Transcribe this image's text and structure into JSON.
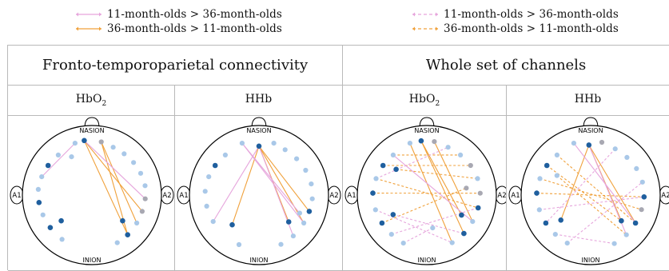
{
  "colors": {
    "pink": "#e6a5dc",
    "orange": "#f0a13b",
    "electrode_light": "#a9c8e8",
    "electrode_dark": "#1f5f9e",
    "electrode_gray": "#a8a8b2"
  },
  "legend": {
    "left": [
      {
        "label": "11-month-olds > 36-month-olds",
        "color": "pink",
        "style": "solid"
      },
      {
        "label": "36-month-olds > 11-month-olds",
        "color": "orange",
        "style": "solid"
      }
    ],
    "right": [
      {
        "label": "11-month-olds > 36-month-olds",
        "color": "pink",
        "style": "dashed"
      },
      {
        "label": "36-month-olds > 11-month-olds",
        "color": "orange",
        "style": "dashed"
      }
    ]
  },
  "groups": [
    {
      "title": "Fronto-temporoparietal connectivity"
    },
    {
      "title": "Whole set of channels"
    }
  ],
  "landmarks": {
    "nasion": "NASION",
    "inion": "INION",
    "left_ear": "A1",
    "right_ear": "A2"
  },
  "panels": [
    {
      "signal": "HbO",
      "signal_sub": "2",
      "electrodes": [
        {
          "a": 108,
          "r": 0.98,
          "t": "l"
        },
        {
          "a": 98,
          "r": 0.99,
          "t": "d"
        },
        {
          "a": 80,
          "r": 0.97,
          "t": "g"
        },
        {
          "a": 66,
          "r": 0.94,
          "t": "l"
        },
        {
          "a": 52,
          "r": 0.94,
          "t": "l"
        },
        {
          "a": 38,
          "r": 0.95,
          "t": "l"
        },
        {
          "a": 24,
          "r": 0.96,
          "t": "l"
        },
        {
          "a": 10,
          "r": 0.97,
          "t": "l"
        },
        {
          "a": -4,
          "r": 0.96,
          "t": "g"
        },
        {
          "a": -18,
          "r": 0.95,
          "t": "g"
        },
        {
          "a": -32,
          "r": 0.95,
          "t": "l"
        },
        {
          "a": -48,
          "r": 0.96,
          "t": "d"
        },
        {
          "a": -62,
          "r": 0.97,
          "t": "l"
        },
        {
          "a": 130,
          "r": 0.94,
          "t": "l"
        },
        {
          "a": 146,
          "r": 0.95,
          "t": "d"
        },
        {
          "a": 160,
          "r": 0.96,
          "t": "l"
        },
        {
          "a": 174,
          "r": 0.97,
          "t": "l"
        },
        {
          "a": -172,
          "r": 0.96,
          "t": "d"
        },
        {
          "a": -158,
          "r": 0.95,
          "t": "l"
        },
        {
          "a": -142,
          "r": 0.95,
          "t": "d"
        },
        {
          "a": -124,
          "r": 0.96,
          "t": "l"
        },
        {
          "a": 118,
          "r": 0.78,
          "t": "l"
        },
        {
          "a": -140,
          "r": 0.72,
          "t": "d"
        },
        {
          "a": -40,
          "r": 0.72,
          "t": "d"
        }
      ],
      "connections": [
        {
          "from": 1,
          "to": 11,
          "color": "orange",
          "style": "solid"
        },
        {
          "from": 2,
          "to": 10,
          "color": "orange",
          "style": "solid"
        },
        {
          "from": 1,
          "to": 9,
          "color": "orange",
          "style": "solid"
        },
        {
          "from": 2,
          "to": 11,
          "color": "orange",
          "style": "solid"
        },
        {
          "from": 0,
          "to": 15,
          "color": "pink",
          "style": "solid"
        },
        {
          "from": 1,
          "to": 8,
          "color": "pink",
          "style": "solid"
        }
      ]
    },
    {
      "signal": "HHb",
      "signal_sub": "",
      "electrodes": [
        {
          "a": 108,
          "r": 0.98,
          "t": "l"
        },
        {
          "a": 90,
          "r": 0.88,
          "t": "d"
        },
        {
          "a": 74,
          "r": 0.97,
          "t": "l"
        },
        {
          "a": 60,
          "r": 0.94,
          "t": "l"
        },
        {
          "a": 44,
          "r": 0.94,
          "t": "l"
        },
        {
          "a": 28,
          "r": 0.95,
          "t": "l"
        },
        {
          "a": 12,
          "r": 0.96,
          "t": "l"
        },
        {
          "a": -4,
          "r": 0.96,
          "t": "l"
        },
        {
          "a": -18,
          "r": 0.95,
          "t": "d"
        },
        {
          "a": -32,
          "r": 0.95,
          "t": "l"
        },
        {
          "a": -50,
          "r": 0.96,
          "t": "l"
        },
        {
          "a": -66,
          "r": 0.97,
          "t": "l"
        },
        {
          "a": 130,
          "r": 0.94,
          "t": "l"
        },
        {
          "a": 146,
          "r": 0.95,
          "t": "d"
        },
        {
          "a": 160,
          "r": 0.96,
          "t": "l"
        },
        {
          "a": 176,
          "r": 0.97,
          "t": "l"
        },
        {
          "a": -168,
          "r": 0.96,
          "t": "l"
        },
        {
          "a": -150,
          "r": 0.95,
          "t": "l"
        },
        {
          "a": -132,
          "r": 0.72,
          "t": "d"
        },
        {
          "a": -112,
          "r": 0.96,
          "t": "l"
        },
        {
          "a": -42,
          "r": 0.72,
          "t": "d"
        },
        {
          "a": -24,
          "r": 0.8,
          "t": "l"
        }
      ],
      "connections": [
        {
          "from": 1,
          "to": 18,
          "color": "orange",
          "style": "solid"
        },
        {
          "from": 1,
          "to": 8,
          "color": "orange",
          "style": "solid"
        },
        {
          "from": 1,
          "to": 20,
          "color": "orange",
          "style": "solid"
        },
        {
          "from": 1,
          "to": 9,
          "color": "orange",
          "style": "solid"
        },
        {
          "from": 0,
          "to": 21,
          "color": "pink",
          "style": "solid"
        },
        {
          "from": 1,
          "to": 10,
          "color": "pink",
          "style": "solid"
        },
        {
          "from": 1,
          "to": 17,
          "color": "pink",
          "style": "solid"
        },
        {
          "from": 0,
          "to": 9,
          "color": "pink",
          "style": "solid"
        }
      ]
    },
    {
      "signal": "HbO",
      "signal_sub": "2",
      "electrodes": [
        {
          "a": 108,
          "r": 0.98,
          "t": "l"
        },
        {
          "a": 96,
          "r": 0.98,
          "t": "d"
        },
        {
          "a": 82,
          "r": 0.97,
          "t": "g"
        },
        {
          "a": 66,
          "r": 0.94,
          "t": "l"
        },
        {
          "a": 50,
          "r": 0.94,
          "t": "l"
        },
        {
          "a": 34,
          "r": 0.95,
          "t": "g"
        },
        {
          "a": 18,
          "r": 0.96,
          "t": "l"
        },
        {
          "a": 2,
          "r": 0.96,
          "t": "g"
        },
        {
          "a": -14,
          "r": 0.95,
          "t": "d"
        },
        {
          "a": -30,
          "r": 0.95,
          "t": "l"
        },
        {
          "a": -46,
          "r": 0.96,
          "t": "d"
        },
        {
          "a": -62,
          "r": 0.97,
          "t": "l"
        },
        {
          "a": 130,
          "r": 0.94,
          "t": "l"
        },
        {
          "a": 146,
          "r": 0.95,
          "t": "d"
        },
        {
          "a": 162,
          "r": 0.96,
          "t": "l"
        },
        {
          "a": 178,
          "r": 0.97,
          "t": "d"
        },
        {
          "a": -164,
          "r": 0.96,
          "t": "l"
        },
        {
          "a": -148,
          "r": 0.95,
          "t": "d"
        },
        {
          "a": -132,
          "r": 0.95,
          "t": "l"
        },
        {
          "a": -116,
          "r": 0.96,
          "t": "l"
        },
        {
          "a": 140,
          "r": 0.72,
          "t": "d"
        },
        {
          "a": -150,
          "r": 0.7,
          "t": "d"
        },
        {
          "a": -30,
          "r": 0.72,
          "t": "d"
        },
        {
          "a": 10,
          "r": 0.72,
          "t": "g"
        },
        {
          "a": -80,
          "r": 0.6,
          "t": "l"
        }
      ],
      "connections": [
        {
          "from": 1,
          "to": 10,
          "color": "orange",
          "style": "solid"
        },
        {
          "from": 2,
          "to": 9,
          "color": "orange",
          "style": "solid"
        },
        {
          "from": 1,
          "to": 22,
          "color": "orange",
          "style": "solid"
        },
        {
          "from": 0,
          "to": 11,
          "color": "orange",
          "style": "solid"
        },
        {
          "from": 13,
          "to": 5,
          "color": "orange",
          "style": "dashed"
        },
        {
          "from": 15,
          "to": 7,
          "color": "orange",
          "style": "dashed"
        },
        {
          "from": 20,
          "to": 6,
          "color": "orange",
          "style": "dashed"
        },
        {
          "from": 17,
          "to": 23,
          "color": "orange",
          "style": "dashed"
        },
        {
          "from": 12,
          "to": 4,
          "color": "orange",
          "style": "dashed"
        },
        {
          "from": 14,
          "to": 8,
          "color": "orange",
          "style": "dashed"
        },
        {
          "from": 12,
          "to": 9,
          "color": "pink",
          "style": "solid"
        },
        {
          "from": 16,
          "to": 11,
          "color": "pink",
          "style": "dashed"
        },
        {
          "from": 14,
          "to": 3,
          "color": "pink",
          "style": "dashed"
        },
        {
          "from": 18,
          "to": 8,
          "color": "pink",
          "style": "dashed"
        },
        {
          "from": 21,
          "to": 10,
          "color": "pink",
          "style": "dashed"
        },
        {
          "from": 19,
          "to": 24,
          "color": "pink",
          "style": "dashed"
        }
      ]
    },
    {
      "signal": "HHb",
      "signal_sub": "",
      "electrodes": [
        {
          "a": 108,
          "r": 0.98,
          "t": "l"
        },
        {
          "a": 92,
          "r": 0.9,
          "t": "d"
        },
        {
          "a": 78,
          "r": 0.97,
          "t": "g"
        },
        {
          "a": 62,
          "r": 0.94,
          "t": "l"
        },
        {
          "a": 46,
          "r": 0.94,
          "t": "l"
        },
        {
          "a": 30,
          "r": 0.95,
          "t": "l"
        },
        {
          "a": 14,
          "r": 0.96,
          "t": "l"
        },
        {
          "a": -2,
          "r": 0.96,
          "t": "d"
        },
        {
          "a": -16,
          "r": 0.95,
          "t": "g"
        },
        {
          "a": -32,
          "r": 0.95,
          "t": "d"
        },
        {
          "a": -48,
          "r": 0.96,
          "t": "l"
        },
        {
          "a": -64,
          "r": 0.97,
          "t": "l"
        },
        {
          "a": 130,
          "r": 0.94,
          "t": "l"
        },
        {
          "a": 146,
          "r": 0.95,
          "t": "d"
        },
        {
          "a": 162,
          "r": 0.96,
          "t": "l"
        },
        {
          "a": 178,
          "r": 0.97,
          "t": "d"
        },
        {
          "a": -164,
          "r": 0.96,
          "t": "l"
        },
        {
          "a": -148,
          "r": 0.95,
          "t": "d"
        },
        {
          "a": -132,
          "r": 0.95,
          "t": "l"
        },
        {
          "a": -116,
          "r": 0.96,
          "t": "l"
        },
        {
          "a": -140,
          "r": 0.7,
          "t": "d"
        },
        {
          "a": -40,
          "r": 0.72,
          "t": "d"
        },
        {
          "a": 150,
          "r": 0.7,
          "t": "l"
        }
      ],
      "connections": [
        {
          "from": 1,
          "to": 20,
          "color": "orange",
          "style": "solid"
        },
        {
          "from": 1,
          "to": 9,
          "color": "orange",
          "style": "solid"
        },
        {
          "from": 1,
          "to": 21,
          "color": "orange",
          "style": "solid"
        },
        {
          "from": 12,
          "to": 9,
          "color": "orange",
          "style": "dashed"
        },
        {
          "from": 13,
          "to": 21,
          "color": "orange",
          "style": "dashed"
        },
        {
          "from": 14,
          "to": 8,
          "color": "orange",
          "style": "dashed"
        },
        {
          "from": 22,
          "to": 10,
          "color": "orange",
          "style": "dashed"
        },
        {
          "from": 15,
          "to": 7,
          "color": "orange",
          "style": "dashed"
        },
        {
          "from": 0,
          "to": 9,
          "color": "pink",
          "style": "solid"
        },
        {
          "from": 1,
          "to": 10,
          "color": "pink",
          "style": "solid"
        },
        {
          "from": 3,
          "to": 17,
          "color": "pink",
          "style": "dashed"
        },
        {
          "from": 16,
          "to": 7,
          "color": "pink",
          "style": "dashed"
        },
        {
          "from": 18,
          "to": 11,
          "color": "pink",
          "style": "dashed"
        },
        {
          "from": 19,
          "to": 6,
          "color": "pink",
          "style": "dashed"
        }
      ]
    }
  ]
}
